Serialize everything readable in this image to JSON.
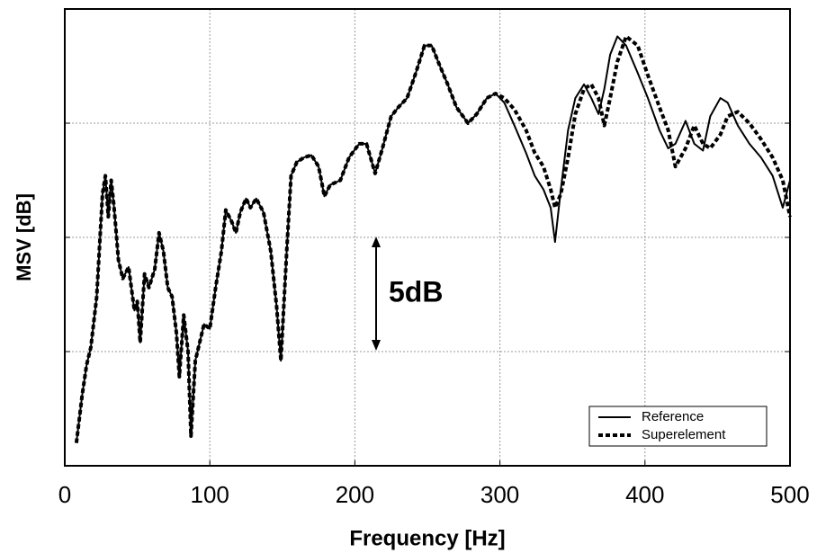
{
  "chart_data": {
    "type": "line",
    "xlabel": "Frequency [Hz]",
    "ylabel": "MSV [dB]",
    "annotation": "5dB",
    "x": [
      8,
      12,
      15,
      18,
      22,
      26,
      28,
      30,
      32,
      34,
      37,
      40,
      44,
      48,
      50,
      52,
      55,
      58,
      62,
      65,
      68,
      71,
      74,
      77,
      79,
      82,
      85,
      87,
      90,
      93,
      96,
      100,
      104,
      108,
      111,
      115,
      118,
      121,
      125,
      128,
      132,
      137,
      142,
      146,
      149,
      153,
      156,
      160,
      165,
      170,
      175,
      179,
      183,
      190,
      196,
      203,
      208,
      214,
      219,
      225,
      230,
      236,
      242,
      248,
      253,
      258,
      264,
      270,
      278,
      284,
      291,
      297,
      303,
      310,
      318,
      324,
      330,
      335,
      338,
      342,
      347,
      352,
      358,
      363,
      368,
      372,
      376,
      381,
      387,
      395,
      402,
      410,
      416,
      421,
      428,
      434,
      440,
      445,
      452,
      457,
      464,
      472,
      480,
      488,
      495,
      500
    ],
    "series": [
      {
        "name": "Reference",
        "color": "#000000",
        "style": "solid",
        "values": [
          1.0,
          3.1,
          4.4,
          5.2,
          7.4,
          11.9,
          12.7,
          10.9,
          12.5,
          11.3,
          9.0,
          8.2,
          8.7,
          6.8,
          7.2,
          5.4,
          8.4,
          7.8,
          8.6,
          10.2,
          9.4,
          7.8,
          7.4,
          5.8,
          3.9,
          6.6,
          5.0,
          1.3,
          4.6,
          5.4,
          6.2,
          6.0,
          7.8,
          9.4,
          11.2,
          10.7,
          10.2,
          11.1,
          11.7,
          11.3,
          11.7,
          11.1,
          9.4,
          7.0,
          4.6,
          9.4,
          12.7,
          13.3,
          13.5,
          13.6,
          13.1,
          11.8,
          12.3,
          12.5,
          13.5,
          14.1,
          14.1,
          12.8,
          13.9,
          15.3,
          15.7,
          16.1,
          17.2,
          18.4,
          18.4,
          17.6,
          16.7,
          15.7,
          15.0,
          15.4,
          16.1,
          16.3,
          15.9,
          14.9,
          13.7,
          12.7,
          12.1,
          11.3,
          9.8,
          12.1,
          14.7,
          16.1,
          16.7,
          16.1,
          15.4,
          16.5,
          18.0,
          18.8,
          18.4,
          17.2,
          16.1,
          14.7,
          13.9,
          14.1,
          15.1,
          14.1,
          13.8,
          15.3,
          16.1,
          15.9,
          14.9,
          14.1,
          13.5,
          12.7,
          11.3,
          12.5
        ]
      },
      {
        "name": "Superelement",
        "color": "#000000",
        "style": "dotted",
        "values": [
          1.0,
          3.1,
          4.4,
          5.2,
          7.4,
          11.9,
          12.7,
          10.9,
          12.5,
          11.3,
          9.0,
          8.2,
          8.7,
          6.8,
          7.2,
          5.4,
          8.4,
          7.8,
          8.6,
          10.2,
          9.4,
          7.8,
          7.4,
          5.8,
          3.9,
          6.6,
          5.0,
          1.3,
          4.6,
          5.4,
          6.2,
          6.0,
          7.8,
          9.4,
          11.2,
          10.7,
          10.2,
          11.1,
          11.7,
          11.3,
          11.7,
          11.1,
          9.4,
          7.0,
          4.6,
          9.4,
          12.7,
          13.3,
          13.5,
          13.6,
          13.1,
          11.8,
          12.3,
          12.5,
          13.5,
          14.1,
          14.1,
          12.8,
          13.9,
          15.3,
          15.7,
          16.1,
          17.2,
          18.4,
          18.4,
          17.6,
          16.7,
          15.7,
          15.0,
          15.4,
          16.1,
          16.3,
          16.1,
          15.6,
          14.7,
          13.7,
          13.1,
          12.1,
          11.3,
          11.9,
          13.5,
          15.4,
          16.5,
          16.7,
          16.1,
          14.9,
          16.1,
          17.7,
          18.8,
          18.4,
          17.1,
          15.7,
          14.7,
          13.1,
          13.9,
          14.9,
          14.1,
          13.9,
          14.5,
          15.3,
          15.5,
          15.0,
          14.3,
          13.5,
          12.5,
          10.9
        ]
      }
    ],
    "xlim": [
      0,
      500
    ],
    "xticks": [
      0,
      100,
      200,
      300,
      400,
      500
    ],
    "ylim": [
      0,
      20
    ],
    "yticks": [
      5,
      10,
      15
    ],
    "grid": true,
    "legend": "lower right"
  }
}
